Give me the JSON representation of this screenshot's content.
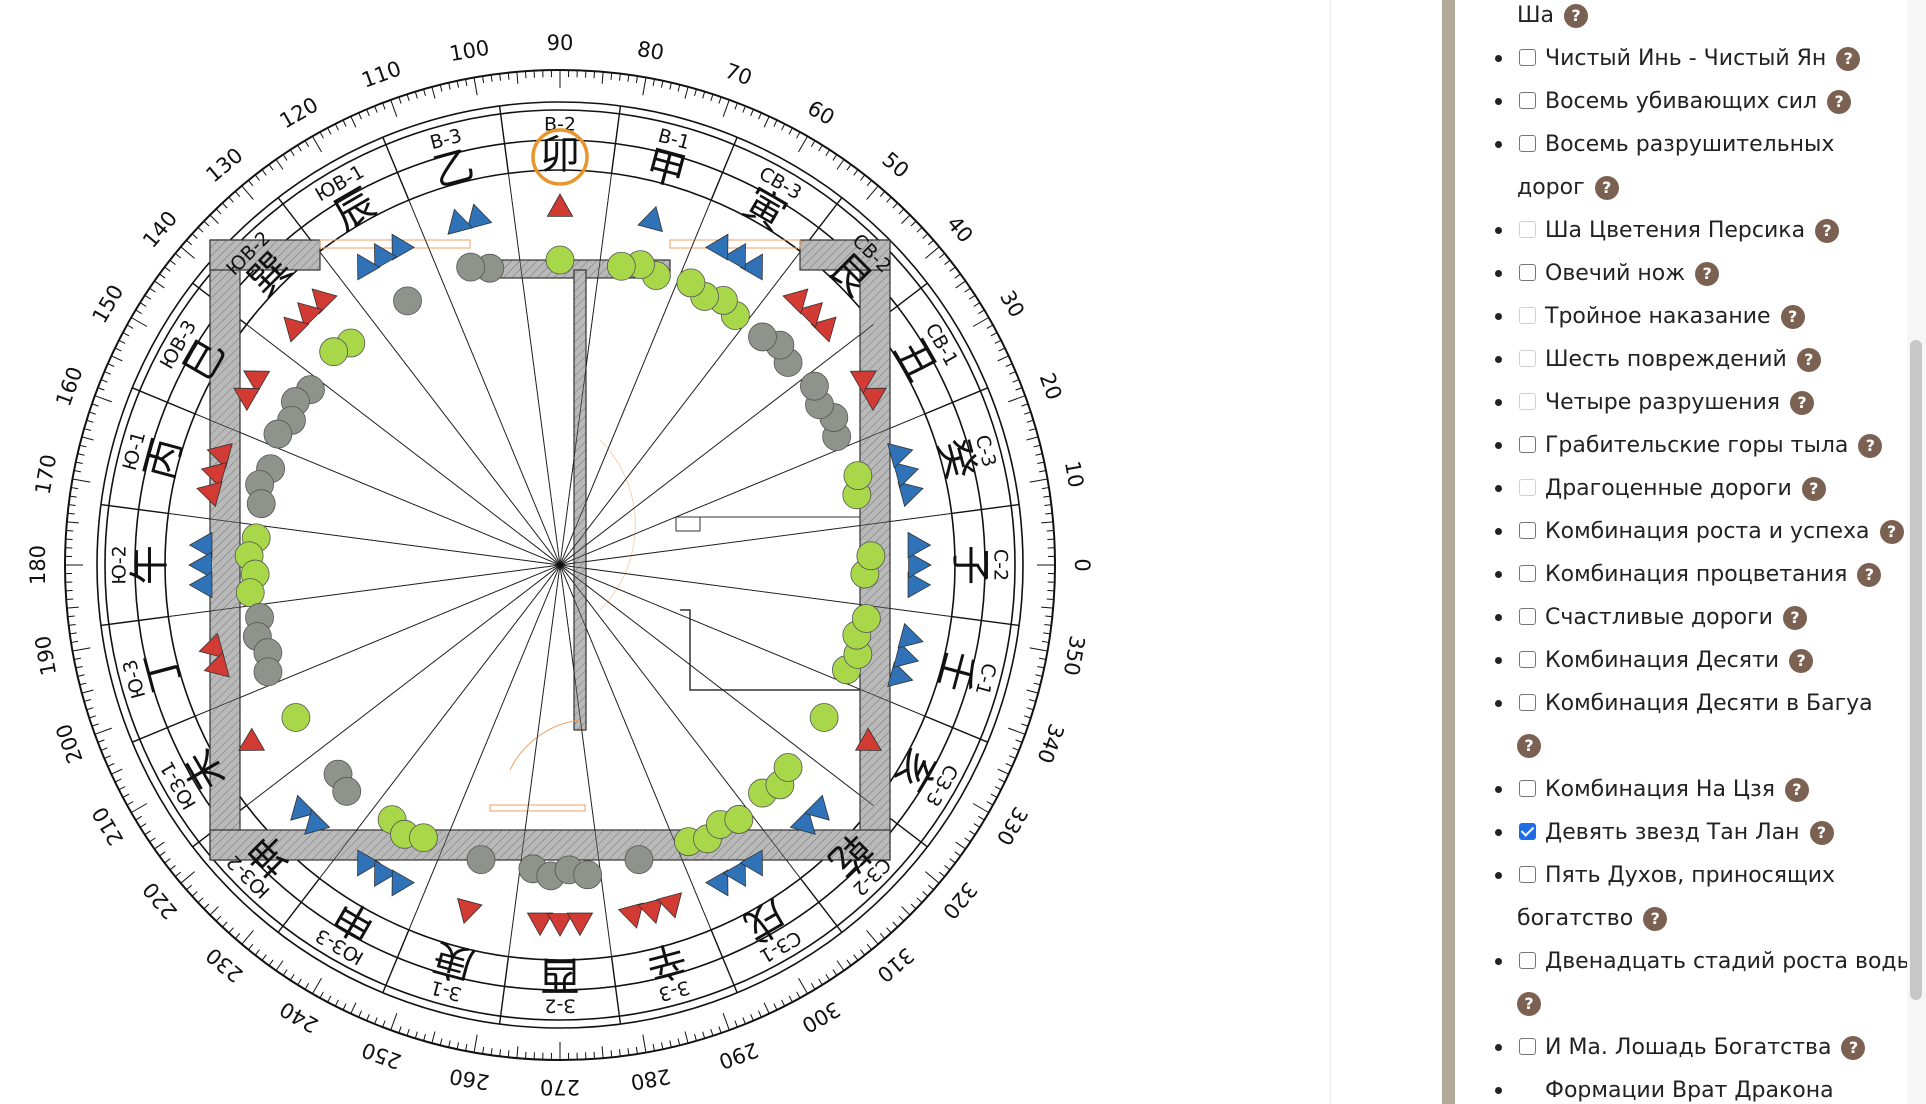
{
  "chart": {
    "degree_labels": [
      "0",
      "10",
      "20",
      "30",
      "40",
      "50",
      "60",
      "70",
      "80",
      "90",
      "100",
      "110",
      "120",
      "130",
      "140",
      "150",
      "160",
      "170",
      "180",
      "190",
      "200",
      "210",
      "220",
      "230",
      "240",
      "250",
      "260",
      "270",
      "280",
      "290",
      "300",
      "310",
      "320",
      "330",
      "340",
      "350"
    ],
    "sectors": [
      {
        "code": "С-2",
        "hieroglyph": "子"
      },
      {
        "code": "С-3",
        "hieroglyph": "癸"
      },
      {
        "code": "СВ-1",
        "hieroglyph": "丑"
      },
      {
        "code": "СВ-2",
        "hieroglyph": "艮"
      },
      {
        "code": "СВ-3",
        "hieroglyph": "寅"
      },
      {
        "code": "В-1",
        "hieroglyph": "甲"
      },
      {
        "code": "В-2",
        "hieroglyph": "卯"
      },
      {
        "code": "В-3",
        "hieroglyph": "乙"
      },
      {
        "code": "ЮВ-1",
        "hieroglyph": "辰"
      },
      {
        "code": "ЮВ-2",
        "hieroglyph": "巽"
      },
      {
        "code": "ЮВ-3",
        "hieroglyph": "巳"
      },
      {
        "code": "Ю-1",
        "hieroglyph": "丙"
      },
      {
        "code": "Ю-2",
        "hieroglyph": "午"
      },
      {
        "code": "Ю-3",
        "hieroglyph": "丁"
      },
      {
        "code": "ЮЗ-1",
        "hieroglyph": "未"
      },
      {
        "code": "ЮЗ-2",
        "hieroglyph": "坤"
      },
      {
        "code": "ЮЗ-3",
        "hieroglyph": "申"
      },
      {
        "code": "З-1",
        "hieroglyph": "庚"
      },
      {
        "code": "З-2",
        "hieroglyph": "酉"
      },
      {
        "code": "З-3",
        "hieroglyph": "辛"
      },
      {
        "code": "СЗ-1",
        "hieroglyph": "戌"
      },
      {
        "code": "СЗ-2",
        "hieroglyph": "乾"
      },
      {
        "code": "СЗ-3",
        "hieroglyph": "亥"
      },
      {
        "code": "С-1",
        "hieroglyph": "壬"
      }
    ],
    "highlighted_sector": "В-2",
    "colors": {
      "red": "#d23a34",
      "blue": "#2f72b7",
      "green": "#a8d84a",
      "gray": "#8e948b",
      "highlight": "#e8952c",
      "wall": "#b9b9b9",
      "door": "#f0a060"
    },
    "outer_symbols": [
      {
        "type": "blue",
        "n": 3
      },
      {
        "type": "blue",
        "n": 3
      },
      {
        "type": "red",
        "n": 2
      },
      {
        "type": "red",
        "n": 3
      },
      {
        "type": "blue",
        "n": 3
      },
      {
        "type": "blue",
        "n": 1
      },
      {
        "type": "red",
        "n": 1
      },
      {
        "type": "blue",
        "n": 2
      },
      {
        "type": "blue",
        "n": 3
      },
      {
        "type": "red",
        "n": 3
      },
      {
        "type": "red",
        "n": 2
      },
      {
        "type": "red",
        "n": 3
      },
      {
        "type": "blue",
        "n": 3
      },
      {
        "type": "red",
        "n": 2
      },
      {
        "type": "red",
        "n": 1
      },
      {
        "type": "blue",
        "n": 2
      },
      {
        "type": "blue",
        "n": 3
      },
      {
        "type": "red",
        "n": 1
      },
      {
        "type": "red",
        "n": 3
      },
      {
        "type": "red",
        "n": 3
      },
      {
        "type": "blue",
        "n": 3
      },
      {
        "type": "blue",
        "n": 2
      },
      {
        "type": "red",
        "n": 1
      },
      {
        "type": "blue",
        "n": 3
      }
    ],
    "inner_symbols": [
      {
        "type": "green",
        "n": 2
      },
      {
        "type": "green",
        "n": 2
      },
      {
        "type": "gray",
        "n": 4
      },
      {
        "type": "gray",
        "n": 3
      },
      {
        "type": "green",
        "n": 4
      },
      {
        "type": "green",
        "n": 3
      },
      {
        "type": "green",
        "n": 1
      },
      {
        "type": "gray",
        "n": 2
      },
      {
        "type": "gray",
        "n": 1
      },
      {
        "type": "green",
        "n": 2
      },
      {
        "type": "gray",
        "n": 4
      },
      {
        "type": "gray",
        "n": 3
      },
      {
        "type": "green",
        "n": 4
      },
      {
        "type": "gray",
        "n": 4
      },
      {
        "type": "green",
        "n": 1
      },
      {
        "type": "gray",
        "n": 2
      },
      {
        "type": "green",
        "n": 3
      },
      {
        "type": "gray",
        "n": 1
      },
      {
        "type": "gray",
        "n": 4
      },
      {
        "type": "gray",
        "n": 1
      },
      {
        "type": "green",
        "n": 4
      },
      {
        "type": "green",
        "n": 3
      },
      {
        "type": "green",
        "n": 1
      },
      {
        "type": "green",
        "n": 4
      }
    ]
  },
  "options": [
    {
      "label": "Ша",
      "state": "none",
      "help": true,
      "cont": true
    },
    {
      "label": "Чистый Инь - Чистый Ян",
      "state": "unchecked",
      "help": true
    },
    {
      "label": "Восемь убивающих сил",
      "state": "unchecked",
      "help": true
    },
    {
      "label": "Восемь разрушительных",
      "state": "unchecked",
      "help": false
    },
    {
      "label": "дорог",
      "state": "none",
      "help": true,
      "cont": true
    },
    {
      "label": "Ша Цветения Персика",
      "state": "disabled",
      "help": true
    },
    {
      "label": "Овечий нож",
      "state": "unchecked",
      "help": true
    },
    {
      "label": "Тройное наказание",
      "state": "disabled",
      "help": true
    },
    {
      "label": "Шесть повреждений",
      "state": "disabled",
      "help": true
    },
    {
      "label": "Четыре разрушения",
      "state": "disabled",
      "help": true
    },
    {
      "label": "Грабительские горы тыла",
      "state": "unchecked",
      "help": true
    },
    {
      "label": "Драгоценные дороги",
      "state": "disabled",
      "help": true
    },
    {
      "label": "Комбинация роста и успеха",
      "state": "unchecked",
      "help": true
    },
    {
      "label": "Комбинация процветания",
      "state": "unchecked",
      "help": true
    },
    {
      "label": "Счастливые дороги",
      "state": "unchecked",
      "help": true
    },
    {
      "label": "Комбинация Десяти",
      "state": "unchecked",
      "help": true
    },
    {
      "label": "Комбинация Десяти в Багуа",
      "state": "unchecked",
      "help": false
    },
    {
      "label": "",
      "state": "none",
      "help": true,
      "cont": true
    },
    {
      "label": "Комбинация На Цзя",
      "state": "unchecked",
      "help": true
    },
    {
      "label": "Девять звезд Тан Лан",
      "state": "checked",
      "help": true
    },
    {
      "label": "Пять Духов, приносящих",
      "state": "unchecked",
      "help": false
    },
    {
      "label": "богатство",
      "state": "none",
      "help": true,
      "cont": true
    },
    {
      "label": "Двенадцать стадий роста воды",
      "state": "unchecked",
      "help": false
    },
    {
      "label": "",
      "state": "none",
      "help": true,
      "cont": true
    },
    {
      "label": "И Ма. Лошадь Богатства",
      "state": "unchecked",
      "help": true
    },
    {
      "label": "Формации Врат Дракона",
      "state": "none",
      "help": false
    }
  ],
  "help_symbol": "?"
}
